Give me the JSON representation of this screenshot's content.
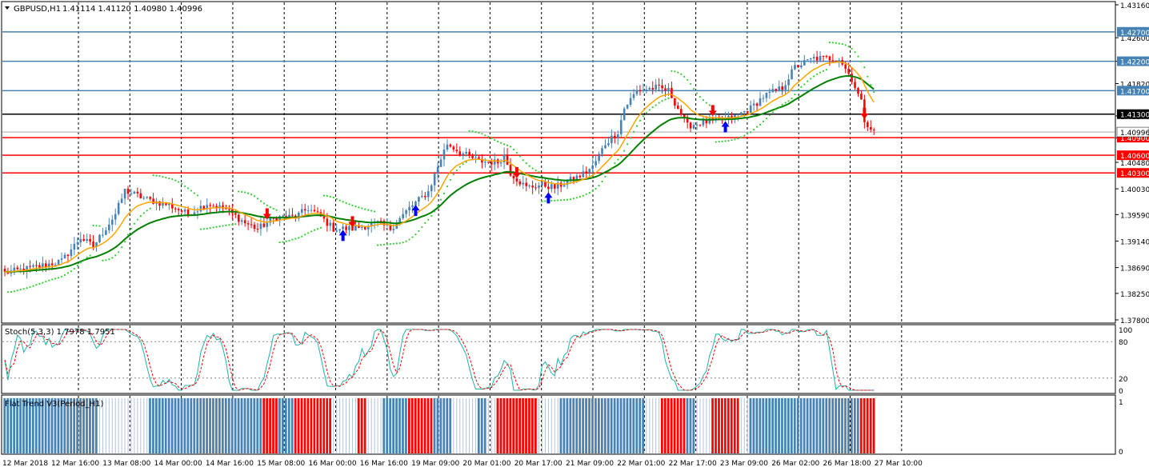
{
  "header": {
    "symbol": "GBPUSD,H1",
    "quote": "1.41114 1.41120 1.40980 1.40996"
  },
  "stoch_header": "Stoch(5,3,3) 1.7978 1.7951",
  "flat_header": "Flat Trend V3(Period_H1)",
  "colors": {
    "bull": "#4682b4",
    "bear": "#ff0000",
    "ema_fast": "#ffa500",
    "ema_slow": "#008000",
    "psar": "#32cd32",
    "stoch_main": "#20b2aa",
    "stoch_signal": "#ff0000",
    "grid": "#000000",
    "level_blue": "#4682b4",
    "level_red": "#ff0000",
    "level_black": "#000000",
    "arrow_up": "#0000ff",
    "arrow_down": "#ff0000"
  },
  "chart_data": [
    {
      "type": "candlestick",
      "name": "GBPUSD,H1",
      "ylim": [
        1.378,
        1.4316
      ],
      "y_ticks": [
        "1.43160",
        "1.42600",
        "1.42200",
        "1.41820",
        "1.41270",
        "1.40896",
        "1.40480",
        "1.40030",
        "1.39590",
        "1.39140",
        "1.38690",
        "1.38250",
        "1.37800"
      ],
      "x_ticks": [
        "12 Mar 2018",
        "12 Mar 16:00",
        "13 Mar 08:00",
        "14 Mar 00:00",
        "14 Mar 16:00",
        "15 Mar 08:00",
        "16 Mar 00:00",
        "16 Mar 16:00",
        "19 Mar 09:00",
        "20 Mar 01:00",
        "20 Mar 17:00",
        "21 Mar 09:00",
        "22 Mar 01:00",
        "22 Mar 17:00",
        "23 Mar 09:00",
        "26 Mar 02:00",
        "26 Mar 18:00",
        "27 Mar 10:00"
      ],
      "levels": [
        {
          "price": 1.427,
          "label": "1.42700",
          "color": "blue"
        },
        {
          "price": 1.422,
          "label": "1.42200",
          "color": "blue"
        },
        {
          "price": 1.417,
          "label": "1.41700",
          "color": "blue"
        },
        {
          "price": 1.413,
          "label": "1.41300",
          "color": "black"
        },
        {
          "price": 1.409,
          "label": "1.40900",
          "color": "red"
        },
        {
          "price": 1.406,
          "label": "1.40600",
          "color": "red"
        },
        {
          "price": 1.403,
          "label": "1.40300",
          "color": "red"
        }
      ],
      "current_price": {
        "price": 1.40996,
        "label": "1.40996"
      },
      "close_path": [
        [
          0,
          1.386
        ],
        [
          10,
          1.387
        ],
        [
          18,
          1.388
        ],
        [
          24,
          1.392
        ],
        [
          28,
          1.3905
        ],
        [
          35,
          1.396
        ],
        [
          38,
          1.4
        ],
        [
          45,
          1.3985
        ],
        [
          52,
          1.3975
        ],
        [
          58,
          1.396
        ],
        [
          64,
          1.3978
        ],
        [
          70,
          1.3968
        ],
        [
          76,
          1.3945
        ],
        [
          80,
          1.3935
        ],
        [
          86,
          1.3955
        ],
        [
          92,
          1.3955
        ],
        [
          96,
          1.397
        ],
        [
          100,
          1.3955
        ],
        [
          104,
          1.3935
        ],
        [
          110,
          1.3935
        ],
        [
          118,
          1.3945
        ],
        [
          122,
          1.3935
        ],
        [
          128,
          1.397
        ],
        [
          134,
          1.3998
        ],
        [
          138,
          1.4055
        ],
        [
          140,
          1.408
        ],
        [
          144,
          1.4065
        ],
        [
          150,
          1.405
        ],
        [
          156,
          1.4048
        ],
        [
          158,
          1.406
        ],
        [
          160,
          1.403
        ],
        [
          165,
          1.4005
        ],
        [
          170,
          1.401
        ],
        [
          174,
          1.4005
        ],
        [
          178,
          1.4015
        ],
        [
          182,
          1.4025
        ],
        [
          186,
          1.404
        ],
        [
          190,
          1.408
        ],
        [
          194,
          1.41
        ],
        [
          196,
          1.414
        ],
        [
          200,
          1.417
        ],
        [
          206,
          1.4175
        ],
        [
          210,
          1.417
        ],
        [
          212,
          1.415
        ],
        [
          216,
          1.411
        ],
        [
          220,
          1.4115
        ],
        [
          226,
          1.412
        ],
        [
          230,
          1.4123
        ],
        [
          236,
          1.414
        ],
        [
          240,
          1.416
        ],
        [
          246,
          1.4175
        ],
        [
          250,
          1.421
        ],
        [
          256,
          1.4225
        ],
        [
          264,
          1.4225
        ],
        [
          268,
          1.419
        ],
        [
          271,
          1.415
        ],
        [
          272,
          1.412
        ],
        [
          275,
          1.41
        ]
      ],
      "overlays": [
        "EMA fast",
        "EMA slow",
        "Parabolic SAR"
      ],
      "signals": [
        {
          "type": "down",
          "bar": 83
        },
        {
          "type": "up",
          "bar": 107
        },
        {
          "type": "down",
          "bar": 110
        },
        {
          "type": "up",
          "bar": 130
        },
        {
          "type": "down",
          "bar": 162
        },
        {
          "type": "up",
          "bar": 172
        },
        {
          "type": "down",
          "bar": 224
        },
        {
          "type": "up",
          "bar": 228
        },
        {
          "type": "down",
          "bar": 272
        }
      ]
    },
    {
      "type": "line",
      "name": "Stoch(5,3,3)",
      "ylim": [
        0,
        100
      ],
      "y_ticks": [
        "100",
        "80",
        "20",
        "0"
      ],
      "levels": [
        80,
        20
      ]
    },
    {
      "type": "bar",
      "name": "Flat Trend V3(Period_H1)",
      "ylim": [
        0,
        1
      ],
      "y_ticks": [
        "1",
        "0"
      ],
      "segments": [
        {
          "from": 0,
          "to": 29,
          "state": "blue"
        },
        {
          "from": 30,
          "to": 45,
          "state": "white"
        },
        {
          "from": 46,
          "to": 81,
          "state": "blue"
        },
        {
          "from": 82,
          "to": 86,
          "state": "red"
        },
        {
          "from": 87,
          "to": 91,
          "state": "blue"
        },
        {
          "from": 92,
          "to": 103,
          "state": "red"
        },
        {
          "from": 104,
          "to": 111,
          "state": "white"
        },
        {
          "from": 112,
          "to": 114,
          "state": "red"
        },
        {
          "from": 115,
          "to": 119,
          "state": "white"
        },
        {
          "from": 120,
          "to": 127,
          "state": "blue"
        },
        {
          "from": 128,
          "to": 135,
          "state": "red"
        },
        {
          "from": 136,
          "to": 141,
          "state": "blue"
        },
        {
          "from": 142,
          "to": 149,
          "state": "white"
        },
        {
          "from": 150,
          "to": 152,
          "state": "blue"
        },
        {
          "from": 153,
          "to": 155,
          "state": "white"
        },
        {
          "from": 156,
          "to": 168,
          "state": "red"
        },
        {
          "from": 169,
          "to": 175,
          "state": "white"
        },
        {
          "from": 176,
          "to": 202,
          "state": "blue"
        },
        {
          "from": 203,
          "to": 207,
          "state": "white"
        },
        {
          "from": 208,
          "to": 215,
          "state": "red"
        },
        {
          "from": 216,
          "to": 218,
          "state": "blue"
        },
        {
          "from": 219,
          "to": 223,
          "state": "white"
        },
        {
          "from": 224,
          "to": 232,
          "state": "red"
        },
        {
          "from": 233,
          "to": 235,
          "state": "white"
        },
        {
          "from": 236,
          "to": 270,
          "state": "blue"
        },
        {
          "from": 271,
          "to": 275,
          "state": "red"
        }
      ]
    }
  ]
}
